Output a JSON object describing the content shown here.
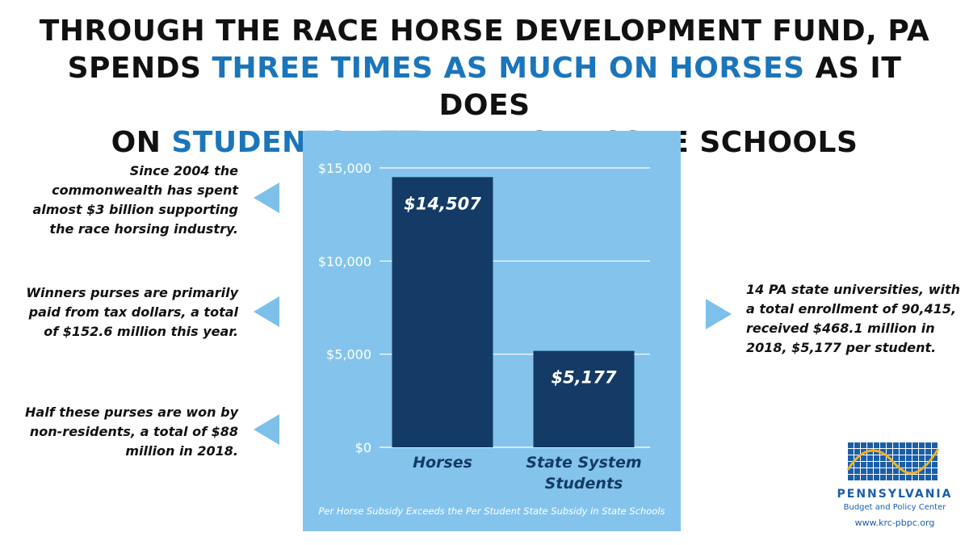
{
  "headline": {
    "line1": "THROUGH THE RACE HORSE DEVELOPMENT FUND, PA",
    "line2_pre": "SPENDS ",
    "line2_highlight": "THREE TIMES AS MUCH ON HORSES",
    "line2_post": " AS IT DOES",
    "line3_pre": "ON ",
    "line3_highlight": "STUDENTS",
    "line3_post": " ATTENDING PASSHE SCHOOLS"
  },
  "left_notes": [
    "Since 2004 the commonwealth has spent almost $3 billion supporting the race horsing industry.",
    "Winners purses are primarily paid from tax dollars, a total of $152.6 million this year.",
    "Half these purses are won by non-residents, a total of $88 million in 2018."
  ],
  "right_note": "14 PA state universities, with a total enrollment of 90,415, received $468.1 million in 2018, $5,177 per student.",
  "chart_data": {
    "type": "bar",
    "categories": [
      "Horses",
      "State System Students"
    ],
    "category_lines": [
      [
        "Horses"
      ],
      [
        "State System",
        "Students"
      ]
    ],
    "values": [
      14507,
      5177
    ],
    "value_labels": [
      "$14,507",
      "$5,177"
    ],
    "yticks": [
      0,
      5000,
      10000,
      15000
    ],
    "ytick_labels": [
      "$0",
      "$5,000",
      "$10,000",
      "$15,000"
    ],
    "ylim": [
      0,
      15000
    ],
    "caption": "Per Horse Subsidy Exceeds the Per Student State Subsidy in State Schools",
    "grid": true,
    "colors": {
      "panel": "#84c4ec",
      "bar": "#133b66",
      "grid": "#ffffff",
      "tick_text": "#ffffff",
      "category_text": "#133b66",
      "value_text": "#ffffff"
    }
  },
  "logo": {
    "name": "PENNSYLVANIA",
    "sub": "Budget and Policy Center",
    "url": "www.krc-pbpc.org"
  },
  "colors": {
    "highlight": "#1b75bb",
    "triangle": "#7dc0ea",
    "logo_blue": "#1b5ea8",
    "logo_gold": "#f0b323"
  }
}
